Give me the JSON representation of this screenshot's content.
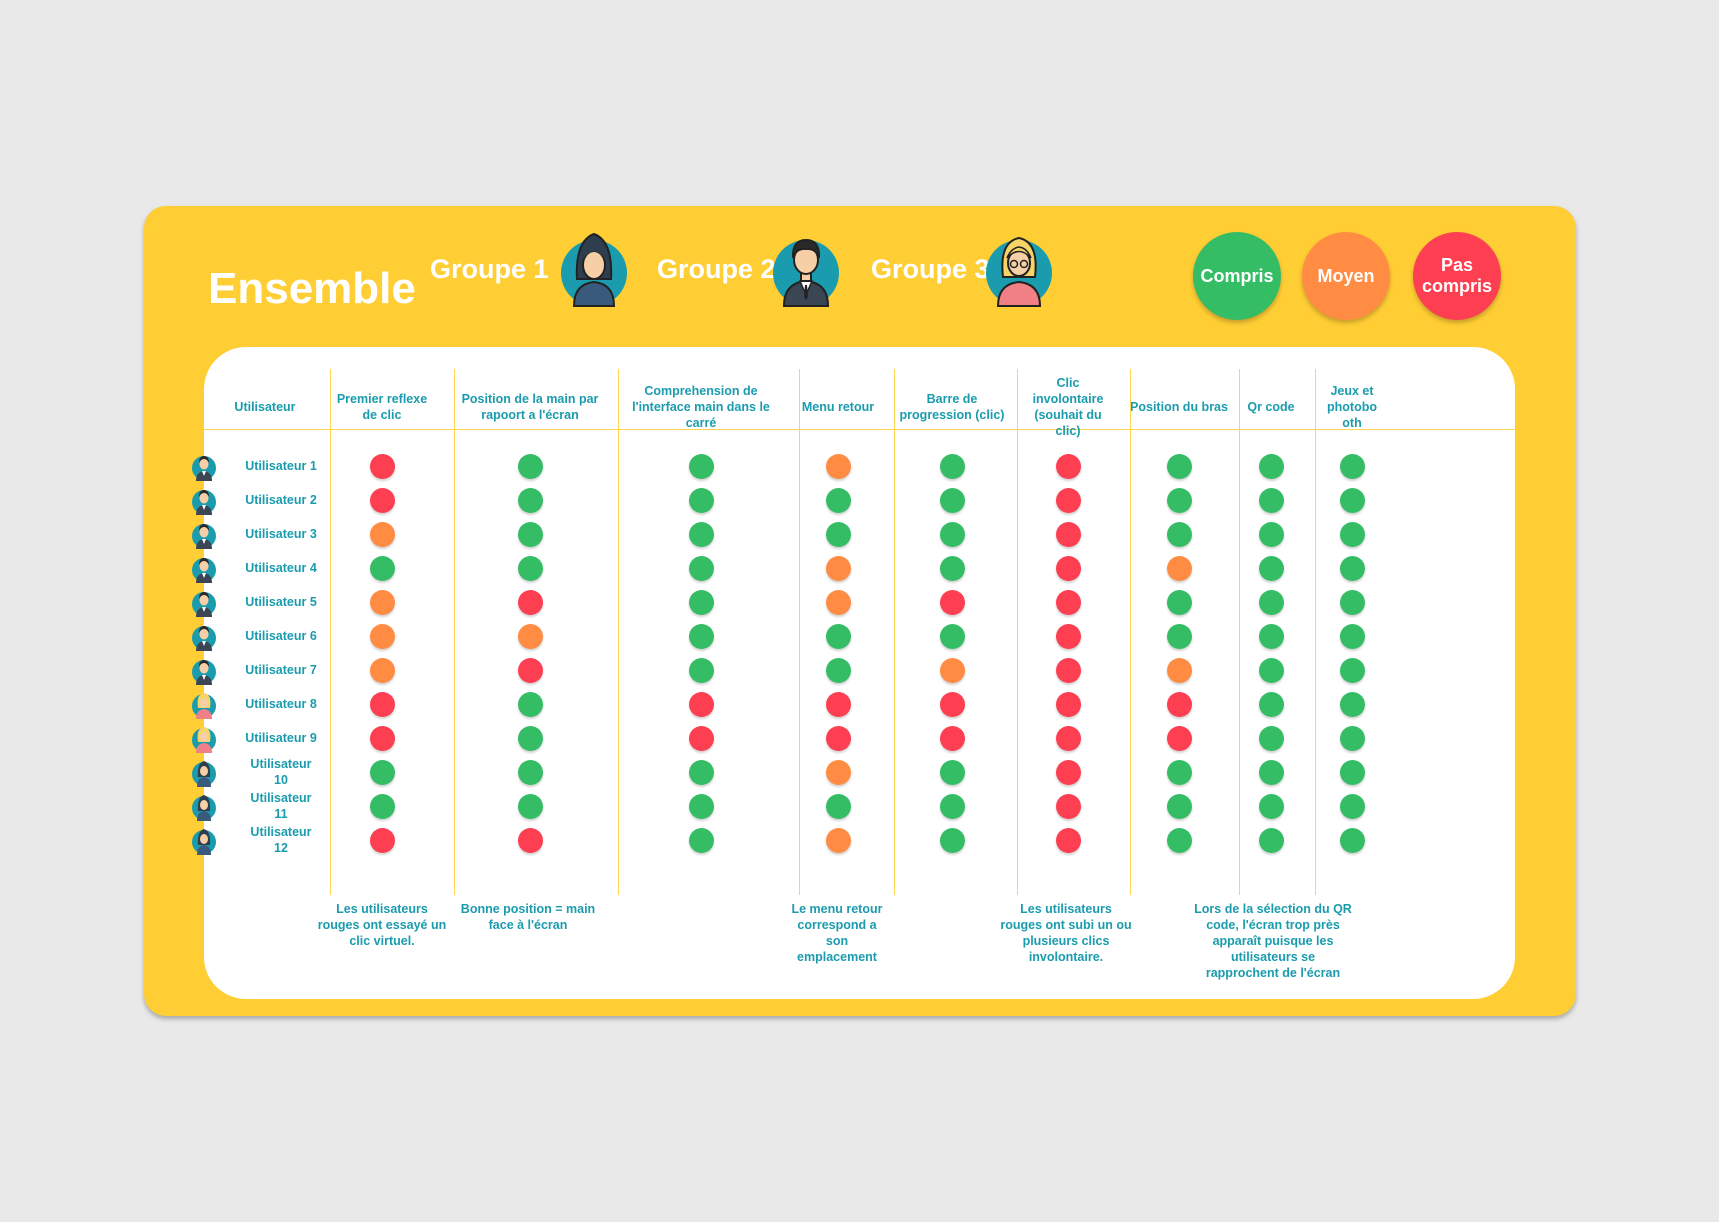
{
  "title": "Ensemble",
  "groups": [
    "Groupe 1",
    "Groupe 2",
    "Groupe 3"
  ],
  "legend": [
    {
      "label": "Compris",
      "status": "G"
    },
    {
      "label": "Moyen",
      "status": "O"
    },
    {
      "label": "Pas compris",
      "status": "R"
    }
  ],
  "colors": {
    "G": "#35bd66",
    "O": "#ff8c42",
    "R": "#fe3e51",
    "board": "#ffcd34",
    "text": "#1a9cae"
  },
  "columns": [
    "Utilisateur",
    "Premier reflexe de clic",
    "Position de la main par rapoort a l'écran",
    "Comprehension de l'interface main dans le carré",
    "Menu retour",
    "Barre de progression (clic)",
    "Clic involontaire (souhait du clic)",
    "Position du bras",
    "Qr code",
    "Jeux et photobo oth"
  ],
  "rows": [
    {
      "user": "Utilisateur 1",
      "group": 2,
      "values": [
        "R",
        "G",
        "G",
        "O",
        "G",
        "R",
        "G",
        "G",
        "G"
      ]
    },
    {
      "user": "Utilisateur 2",
      "group": 2,
      "values": [
        "R",
        "G",
        "G",
        "G",
        "G",
        "R",
        "G",
        "G",
        "G"
      ]
    },
    {
      "user": "Utilisateur 3",
      "group": 2,
      "values": [
        "O",
        "G",
        "G",
        "G",
        "G",
        "R",
        "G",
        "G",
        "G"
      ]
    },
    {
      "user": "Utilisateur 4",
      "group": 2,
      "values": [
        "G",
        "G",
        "G",
        "O",
        "G",
        "R",
        "O",
        "G",
        "G"
      ]
    },
    {
      "user": "Utilisateur 5",
      "group": 2,
      "values": [
        "O",
        "R",
        "G",
        "O",
        "R",
        "R",
        "G",
        "G",
        "G"
      ]
    },
    {
      "user": "Utilisateur 6",
      "group": 2,
      "values": [
        "O",
        "O",
        "G",
        "G",
        "G",
        "R",
        "G",
        "G",
        "G"
      ]
    },
    {
      "user": "Utilisateur 7",
      "group": 2,
      "values": [
        "O",
        "R",
        "G",
        "G",
        "O",
        "R",
        "O",
        "G",
        "G"
      ]
    },
    {
      "user": "Utilisateur 8",
      "group": 3,
      "values": [
        "R",
        "G",
        "R",
        "R",
        "R",
        "R",
        "R",
        "G",
        "G"
      ]
    },
    {
      "user": "Utilisateur 9",
      "group": 3,
      "values": [
        "R",
        "G",
        "R",
        "R",
        "R",
        "R",
        "R",
        "G",
        "G"
      ]
    },
    {
      "user": "Utilisateur 10",
      "group": 1,
      "values": [
        "G",
        "G",
        "G",
        "O",
        "G",
        "R",
        "G",
        "G",
        "G"
      ]
    },
    {
      "user": "Utilisateur 11",
      "group": 1,
      "values": [
        "G",
        "G",
        "G",
        "G",
        "G",
        "R",
        "G",
        "G",
        "G"
      ]
    },
    {
      "user": "Utilisateur 12",
      "group": 1,
      "values": [
        "R",
        "R",
        "G",
        "O",
        "G",
        "R",
        "G",
        "G",
        "G"
      ]
    }
  ],
  "notes": [
    "Les utilisateurs rouges ont essayé un clic virtuel.",
    "Bonne position = main face à l'écran",
    "Le menu retour correspond a son emplacement",
    "Les utilisateurs rouges ont subi un ou plusieurs clics involontaire.",
    "Lors de la sélection du QR code, l'écran trop près apparaît puisque les utilisateurs se rapprochent de l'écran"
  ],
  "icons": {
    "group1": "hoodie-person-icon",
    "group2": "suit-person-icon",
    "group3": "blonde-woman-icon"
  }
}
